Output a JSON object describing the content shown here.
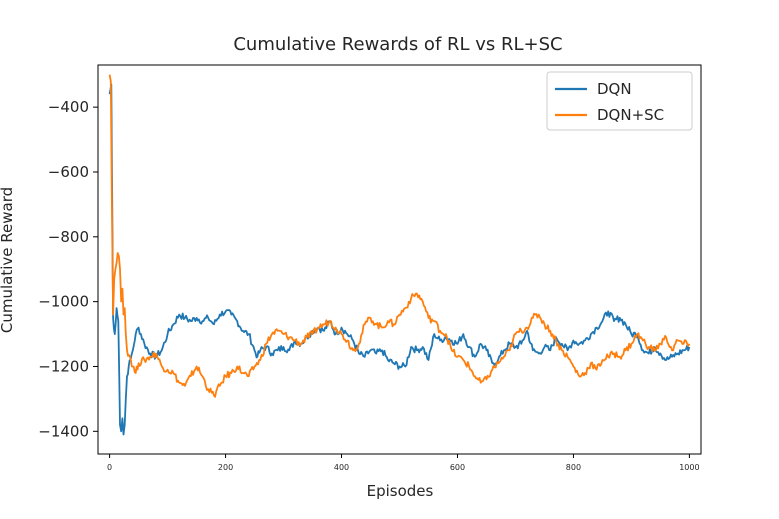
{
  "chart_data": {
    "type": "line",
    "title": "Cumulative Rewards of RL vs RL+SC",
    "xlabel": "Episodes",
    "ylabel": "Cumulative Reward",
    "xlim": [
      -20,
      1020
    ],
    "ylim": [
      -1470,
      -270
    ],
    "x_ticks": [
      0,
      200,
      400,
      600,
      800,
      1000
    ],
    "y_ticks": [
      -400,
      -600,
      -800,
      -1000,
      -1200,
      -1400
    ],
    "grid": false,
    "legend_position": "top-right",
    "series": [
      {
        "name": "DQN",
        "color": "#1f77b4",
        "points": [
          [
            0,
            -360
          ],
          [
            3,
            -330
          ],
          [
            6,
            -1050
          ],
          [
            9,
            -1100
          ],
          [
            12,
            -1020
          ],
          [
            15,
            -1060
          ],
          [
            18,
            -1380
          ],
          [
            20,
            -1400
          ],
          [
            22,
            -1360
          ],
          [
            24,
            -1410
          ],
          [
            26,
            -1380
          ],
          [
            28,
            -1300
          ],
          [
            30,
            -1230
          ],
          [
            33,
            -1200
          ],
          [
            36,
            -1180
          ],
          [
            40,
            -1150
          ],
          [
            45,
            -1100
          ],
          [
            50,
            -1080
          ],
          [
            60,
            -1130
          ],
          [
            70,
            -1160
          ],
          [
            80,
            -1170
          ],
          [
            90,
            -1150
          ],
          [
            100,
            -1100
          ],
          [
            110,
            -1070
          ],
          [
            120,
            -1040
          ],
          [
            130,
            -1050
          ],
          [
            140,
            -1060
          ],
          [
            150,
            -1050
          ],
          [
            160,
            -1060
          ],
          [
            170,
            -1050
          ],
          [
            180,
            -1070
          ],
          [
            190,
            -1040
          ],
          [
            200,
            -1030
          ],
          [
            210,
            -1040
          ],
          [
            220,
            -1060
          ],
          [
            230,
            -1090
          ],
          [
            240,
            -1100
          ],
          [
            250,
            -1150
          ],
          [
            255,
            -1170
          ],
          [
            260,
            -1150
          ],
          [
            270,
            -1140
          ],
          [
            280,
            -1160
          ],
          [
            290,
            -1150
          ],
          [
            300,
            -1140
          ],
          [
            310,
            -1150
          ],
          [
            320,
            -1120
          ],
          [
            330,
            -1130
          ],
          [
            340,
            -1110
          ],
          [
            350,
            -1090
          ],
          [
            360,
            -1080
          ],
          [
            370,
            -1090
          ],
          [
            380,
            -1060
          ],
          [
            390,
            -1100
          ],
          [
            400,
            -1080
          ],
          [
            410,
            -1100
          ],
          [
            420,
            -1120
          ],
          [
            430,
            -1160
          ],
          [
            440,
            -1170
          ],
          [
            450,
            -1150
          ],
          [
            460,
            -1160
          ],
          [
            470,
            -1150
          ],
          [
            480,
            -1180
          ],
          [
            490,
            -1190
          ],
          [
            500,
            -1200
          ],
          [
            510,
            -1200
          ],
          [
            520,
            -1140
          ],
          [
            530,
            -1150
          ],
          [
            540,
            -1140
          ],
          [
            550,
            -1180
          ],
          [
            560,
            -1100
          ],
          [
            570,
            -1120
          ],
          [
            580,
            -1110
          ],
          [
            590,
            -1120
          ],
          [
            600,
            -1130
          ],
          [
            610,
            -1100
          ],
          [
            620,
            -1140
          ],
          [
            630,
            -1170
          ],
          [
            640,
            -1130
          ],
          [
            650,
            -1150
          ],
          [
            660,
            -1190
          ],
          [
            670,
            -1180
          ],
          [
            680,
            -1150
          ],
          [
            690,
            -1130
          ],
          [
            700,
            -1140
          ],
          [
            710,
            -1130
          ],
          [
            720,
            -1090
          ],
          [
            730,
            -1150
          ],
          [
            740,
            -1160
          ],
          [
            750,
            -1140
          ],
          [
            760,
            -1150
          ],
          [
            770,
            -1110
          ],
          [
            780,
            -1130
          ],
          [
            790,
            -1150
          ],
          [
            800,
            -1120
          ],
          [
            810,
            -1130
          ],
          [
            820,
            -1120
          ],
          [
            830,
            -1100
          ],
          [
            840,
            -1080
          ],
          [
            850,
            -1060
          ],
          [
            860,
            -1030
          ],
          [
            870,
            -1060
          ],
          [
            880,
            -1050
          ],
          [
            890,
            -1070
          ],
          [
            900,
            -1100
          ],
          [
            910,
            -1100
          ],
          [
            920,
            -1150
          ],
          [
            930,
            -1160
          ],
          [
            940,
            -1140
          ],
          [
            950,
            -1160
          ],
          [
            960,
            -1180
          ],
          [
            970,
            -1170
          ],
          [
            980,
            -1160
          ],
          [
            990,
            -1150
          ],
          [
            1000,
            -1140
          ]
        ]
      },
      {
        "name": "DQN+SC",
        "color": "#ff7f0e",
        "points": [
          [
            0,
            -300
          ],
          [
            2,
            -320
          ],
          [
            4,
            -700
          ],
          [
            6,
            -1040
          ],
          [
            8,
            -930
          ],
          [
            10,
            -900
          ],
          [
            12,
            -880
          ],
          [
            14,
            -850
          ],
          [
            16,
            -860
          ],
          [
            18,
            -900
          ],
          [
            20,
            -1000
          ],
          [
            22,
            -960
          ],
          [
            24,
            -1040
          ],
          [
            26,
            -1020
          ],
          [
            28,
            -1100
          ],
          [
            30,
            -1150
          ],
          [
            35,
            -1170
          ],
          [
            40,
            -1200
          ],
          [
            45,
            -1220
          ],
          [
            50,
            -1190
          ],
          [
            60,
            -1180
          ],
          [
            70,
            -1170
          ],
          [
            80,
            -1160
          ],
          [
            90,
            -1200
          ],
          [
            100,
            -1210
          ],
          [
            110,
            -1220
          ],
          [
            120,
            -1250
          ],
          [
            130,
            -1260
          ],
          [
            140,
            -1230
          ],
          [
            150,
            -1200
          ],
          [
            160,
            -1230
          ],
          [
            170,
            -1270
          ],
          [
            180,
            -1290
          ],
          [
            190,
            -1260
          ],
          [
            200,
            -1230
          ],
          [
            210,
            -1220
          ],
          [
            220,
            -1200
          ],
          [
            230,
            -1220
          ],
          [
            240,
            -1230
          ],
          [
            250,
            -1200
          ],
          [
            260,
            -1180
          ],
          [
            270,
            -1130
          ],
          [
            280,
            -1100
          ],
          [
            290,
            -1090
          ],
          [
            300,
            -1100
          ],
          [
            310,
            -1110
          ],
          [
            320,
            -1120
          ],
          [
            330,
            -1130
          ],
          [
            340,
            -1110
          ],
          [
            350,
            -1100
          ],
          [
            360,
            -1080
          ],
          [
            370,
            -1070
          ],
          [
            380,
            -1060
          ],
          [
            390,
            -1080
          ],
          [
            400,
            -1100
          ],
          [
            410,
            -1120
          ],
          [
            420,
            -1150
          ],
          [
            430,
            -1130
          ],
          [
            440,
            -1070
          ],
          [
            450,
            -1050
          ],
          [
            460,
            -1070
          ],
          [
            470,
            -1080
          ],
          [
            480,
            -1060
          ],
          [
            490,
            -1070
          ],
          [
            500,
            -1040
          ],
          [
            510,
            -1020
          ],
          [
            520,
            -990
          ],
          [
            530,
            -975
          ],
          [
            540,
            -1000
          ],
          [
            550,
            -1050
          ],
          [
            560,
            -1060
          ],
          [
            570,
            -1090
          ],
          [
            580,
            -1100
          ],
          [
            590,
            -1150
          ],
          [
            600,
            -1170
          ],
          [
            610,
            -1180
          ],
          [
            620,
            -1200
          ],
          [
            630,
            -1230
          ],
          [
            640,
            -1250
          ],
          [
            650,
            -1240
          ],
          [
            660,
            -1210
          ],
          [
            670,
            -1190
          ],
          [
            680,
            -1170
          ],
          [
            690,
            -1150
          ],
          [
            700,
            -1100
          ],
          [
            710,
            -1090
          ],
          [
            720,
            -1080
          ],
          [
            730,
            -1050
          ],
          [
            740,
            -1040
          ],
          [
            750,
            -1070
          ],
          [
            760,
            -1090
          ],
          [
            770,
            -1120
          ],
          [
            780,
            -1150
          ],
          [
            790,
            -1170
          ],
          [
            800,
            -1200
          ],
          [
            810,
            -1230
          ],
          [
            820,
            -1220
          ],
          [
            830,
            -1190
          ],
          [
            840,
            -1210
          ],
          [
            850,
            -1180
          ],
          [
            860,
            -1170
          ],
          [
            870,
            -1160
          ],
          [
            880,
            -1170
          ],
          [
            890,
            -1150
          ],
          [
            900,
            -1130
          ],
          [
            910,
            -1100
          ],
          [
            920,
            -1120
          ],
          [
            930,
            -1140
          ],
          [
            940,
            -1150
          ],
          [
            950,
            -1130
          ],
          [
            960,
            -1110
          ],
          [
            970,
            -1150
          ],
          [
            980,
            -1120
          ],
          [
            990,
            -1130
          ],
          [
            1000,
            -1130
          ]
        ]
      }
    ]
  }
}
